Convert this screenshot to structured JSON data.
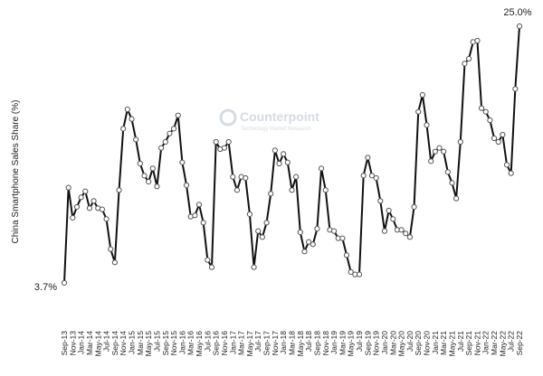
{
  "chart_data": {
    "type": "line",
    "y_label": "China Smartphone  Sales Share (%)",
    "watermark": "Counterpoint",
    "watermark_sub": "Technology Market Research",
    "color": "#111111",
    "ylim": [
      3,
      26
    ],
    "categories": [
      "Sep-13",
      null,
      "Nov-13",
      null,
      "Jan-14",
      null,
      "Mar-14",
      null,
      "May-14",
      null,
      "Jul-14",
      null,
      "Sep-14",
      null,
      "Nov-14",
      null,
      "Jan-15",
      null,
      "Mar-15",
      null,
      "May-15",
      null,
      "Jul-15",
      null,
      "Sep-15",
      null,
      "Nov-15",
      null,
      "Jan-16",
      null,
      "Mar-16",
      null,
      "May-16",
      null,
      "Jul-16",
      null,
      "Sep-16",
      null,
      "Nov-16",
      null,
      "Jan-17",
      null,
      "Mar-17",
      null,
      "May-17",
      null,
      "Jul-17",
      null,
      "Sep-17",
      null,
      "Nov-17",
      null,
      "Jan-18",
      null,
      "Mar-18",
      null,
      "May-18",
      null,
      "Jul-18",
      null,
      "Sep-18",
      null,
      "Nov-18",
      null,
      "Jan-19",
      null,
      "Mar-19",
      null,
      "May-19",
      null,
      "Jul-19",
      null,
      "Sep-19",
      null,
      "Nov-19",
      null,
      "Jan-20",
      null,
      "Mar-20",
      null,
      "May-20",
      null,
      "Jul-20",
      null,
      "Sep-20",
      null,
      "Nov-20",
      null,
      "Jan-21",
      null,
      "Mar-21",
      null,
      "May-21",
      null,
      "Jul-21",
      null,
      "Sep-21",
      null,
      "Nov-21",
      null,
      "Jan-22",
      null,
      "Mar-22",
      null,
      "May-22",
      null,
      "Jul-22",
      null,
      "Sep-22"
    ],
    "values": [
      3.7,
      11.6,
      9.1,
      10.0,
      10.8,
      11.3,
      9.9,
      10.5,
      9.9,
      9.8,
      9.0,
      6.5,
      5.4,
      11.4,
      16.5,
      18.1,
      17.3,
      15.6,
      13.6,
      12.6,
      12.1,
      13.2,
      11.7,
      14.9,
      15.4,
      16.1,
      16.5,
      17.6,
      13.7,
      11.8,
      9.2,
      9.3,
      10.2,
      8.7,
      5.6,
      5.0,
      15.4,
      14.8,
      14.9,
      15.4,
      12.5,
      11.4,
      12.5,
      12.4,
      9.4,
      5.0,
      8.0,
      7.5,
      8.7,
      11.1,
      14.7,
      13.6,
      14.4,
      13.7,
      11.4,
      12.5,
      7.9,
      6.3,
      7.1,
      6.9,
      8.2,
      13.2,
      11.4,
      8.1,
      8.0,
      7.4,
      7.4,
      6.0,
      4.6,
      4.4,
      4.4,
      12.6,
      14.1,
      12.6,
      12.4,
      10.5,
      8.0,
      9.7,
      9.0,
      8.1,
      8.1,
      7.8,
      7.5,
      10.0,
      17.9,
      19.3,
      16.8,
      13.8,
      14.6,
      14.9,
      14.6,
      12.9,
      12.0,
      10.7,
      15.4,
      21.9,
      22.3,
      23.7,
      23.8,
      18.2,
      17.9,
      17.2,
      15.7,
      15.4,
      16.0,
      13.5,
      12.8,
      19.8,
      25.0
    ],
    "value_labels": [
      "3.7%",
      null,
      null,
      null,
      null,
      null,
      null,
      null,
      null,
      null,
      null,
      null,
      null,
      null,
      null,
      null,
      null,
      null,
      null,
      null,
      null,
      null,
      null,
      null,
      null,
      null,
      null,
      null,
      null,
      null,
      null,
      null,
      null,
      null,
      null,
      null,
      null,
      null,
      null,
      null,
      null,
      null,
      null,
      null,
      null,
      null,
      null,
      null,
      null,
      null,
      null,
      null,
      null,
      null,
      null,
      null,
      null,
      null,
      null,
      null,
      null,
      null,
      null,
      null,
      null,
      null,
      null,
      null,
      null,
      null,
      null,
      null,
      null,
      null,
      null,
      null,
      null,
      null,
      null,
      null,
      null,
      null,
      null,
      null,
      null,
      null,
      null,
      null,
      null,
      null,
      null,
      null,
      null,
      null,
      null,
      null,
      null,
      null,
      null,
      null,
      null,
      null,
      null,
      null,
      null,
      null,
      null,
      null,
      "25.0%"
    ]
  }
}
